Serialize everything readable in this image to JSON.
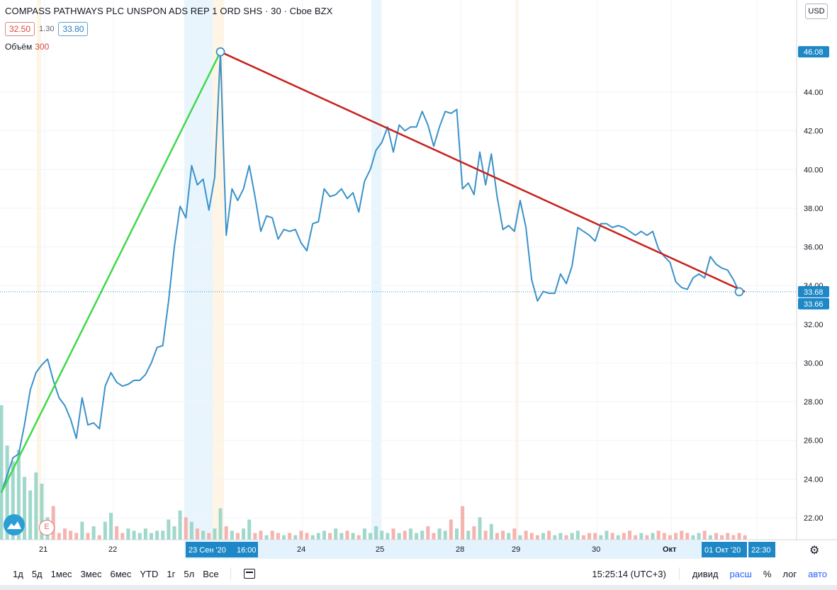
{
  "legend": {
    "title": "COMPASS PATHWAYS PLC UNSPON ADS REP 1 ORD SHS · 30 · Cboe BZX",
    "bid": "32.50",
    "spread": "1.30",
    "ask": "33.80",
    "volume_label": "Объём",
    "volume_value": "300"
  },
  "currency": "USD",
  "toolbar": {
    "timeframes": [
      "1д",
      "5д",
      "1мес",
      "3мес",
      "6мес",
      "YTD",
      "1г",
      "5л",
      "Все"
    ],
    "time": "15:25:14 (UTC+3)",
    "dividends": "дивид",
    "extended": "расш",
    "percent": "%",
    "log": "лог",
    "auto": "авто"
  },
  "earnings_marker": "E",
  "colors": {
    "line": "#3a92c9",
    "trend_up": "#3fd94a",
    "trend_down": "#c8201a",
    "axis_label_bg": "#1e88c7"
  },
  "chart_data": {
    "type": "line",
    "title": "",
    "xlabel": "",
    "ylabel": "",
    "ylim": [
      21,
      47
    ],
    "grid": true,
    "legend": "top-left",
    "x_ticks": [
      "21",
      "22",
      "23 Сен '20",
      "24",
      "25",
      "28",
      "29",
      "30",
      "Окт"
    ],
    "x_highlight_labels": [
      "23 Сен '20",
      "16:00",
      "01 Окт '20",
      "22:30"
    ],
    "y_ticks": [
      "22.00",
      "24.00",
      "26.00",
      "28.00",
      "30.00",
      "32.00",
      "34.00",
      "36.00",
      "38.00",
      "40.00",
      "42.00",
      "44.00"
    ],
    "price_labels": [
      "46.08",
      "33.68",
      "33.66"
    ],
    "series": [
      {
        "values": [
          23.3,
          24.2,
          25.1,
          25.3,
          26.8,
          28.6,
          29.5,
          29.9,
          30.2,
          29.1,
          28.2,
          27.8,
          27.1,
          26.1,
          28.2,
          26.8,
          26.9,
          26.6,
          28.8,
          29.5,
          29.0,
          28.8,
          28.9,
          29.1,
          29.1,
          29.4,
          30.0,
          30.8,
          30.9,
          33.2,
          36.0,
          38.1,
          37.5,
          40.2,
          39.2,
          39.5,
          37.9,
          39.6,
          46.08,
          36.6,
          39.0,
          38.4,
          39.0,
          40.2,
          38.6,
          36.8,
          37.6,
          37.5,
          36.4,
          36.9,
          36.8,
          36.9,
          36.2,
          35.8,
          37.2,
          37.3,
          39.0,
          38.6,
          38.7,
          39.0,
          38.5,
          38.8,
          37.8,
          39.4,
          40.0,
          41.0,
          41.4,
          42.2,
          40.9,
          42.3,
          42.0,
          42.2,
          42.2,
          43.0,
          42.3,
          41.2,
          42.2,
          43.0,
          42.9,
          43.1,
          39.0,
          39.3,
          38.7,
          40.9,
          39.2,
          40.8,
          38.6,
          36.9,
          37.1,
          36.8,
          38.4,
          37.0,
          34.3,
          33.2,
          33.7,
          33.6,
          33.6,
          34.6,
          34.1,
          35.0,
          37.0,
          36.8,
          36.6,
          36.3,
          37.2,
          37.2,
          37.0,
          37.1,
          37.0,
          36.8,
          36.6,
          36.8,
          36.6,
          36.8,
          35.9,
          35.5,
          35.2,
          34.2,
          33.9,
          33.8,
          34.4,
          34.6,
          34.4,
          35.5,
          35.1,
          34.9,
          34.8,
          34.3,
          33.68
        ]
      }
    ],
    "trendlines": [
      {
        "color": "green",
        "from": {
          "x_index": 0,
          "y": 23.3
        },
        "to": {
          "x_index": 38,
          "y": 46.08
        }
      },
      {
        "color": "red",
        "from": {
          "x_index": 38,
          "y": 46.08
        },
        "to": {
          "x_index": 129,
          "y": 33.68
        }
      }
    ],
    "volume": [
      6,
      4.2,
      3.5,
      4.0,
      2.8,
      2.2,
      3.0,
      2.5,
      1.0,
      1.5,
      0.3,
      0.5,
      0.4,
      0.3,
      0.8,
      0.3,
      0.6,
      0.2,
      0.8,
      1.2,
      0.6,
      0.3,
      0.5,
      0.4,
      0.3,
      0.5,
      0.3,
      0.4,
      0.4,
      0.9,
      0.6,
      1.3,
      1.0,
      0.8,
      0.5,
      0.4,
      0.3,
      0.5,
      1.4,
      0.6,
      0.4,
      0.3,
      0.5,
      0.9,
      0.3,
      0.4,
      0.2,
      0.4,
      0.3,
      0.2,
      0.3,
      0.2,
      0.4,
      0.3,
      0.2,
      0.3,
      0.4,
      0.3,
      0.5,
      0.3,
      0.4,
      0.3,
      0.2,
      0.5,
      0.3,
      0.6,
      0.4,
      0.3,
      0.5,
      0.3,
      0.4,
      0.5,
      0.3,
      0.4,
      0.6,
      0.3,
      0.5,
      0.4,
      0.9,
      0.5,
      1.5,
      0.4,
      0.6,
      1.0,
      0.4,
      0.7,
      0.3,
      0.4,
      0.3,
      0.5,
      0.2,
      0.4,
      0.3,
      0.2,
      0.3,
      0.4,
      0.2,
      0.3,
      0.2,
      0.3,
      0.4,
      0.2,
      0.3,
      0.3,
      0.2,
      0.4,
      0.3,
      0.2,
      0.3,
      0.4,
      0.2,
      0.3,
      0.2,
      0.3,
      0.4,
      0.3,
      0.2,
      0.3,
      0.4,
      0.3,
      0.2,
      0.3,
      0.4,
      0.2,
      0.3,
      0.2,
      0.3,
      0.2,
      0.3,
      0.2
    ]
  }
}
